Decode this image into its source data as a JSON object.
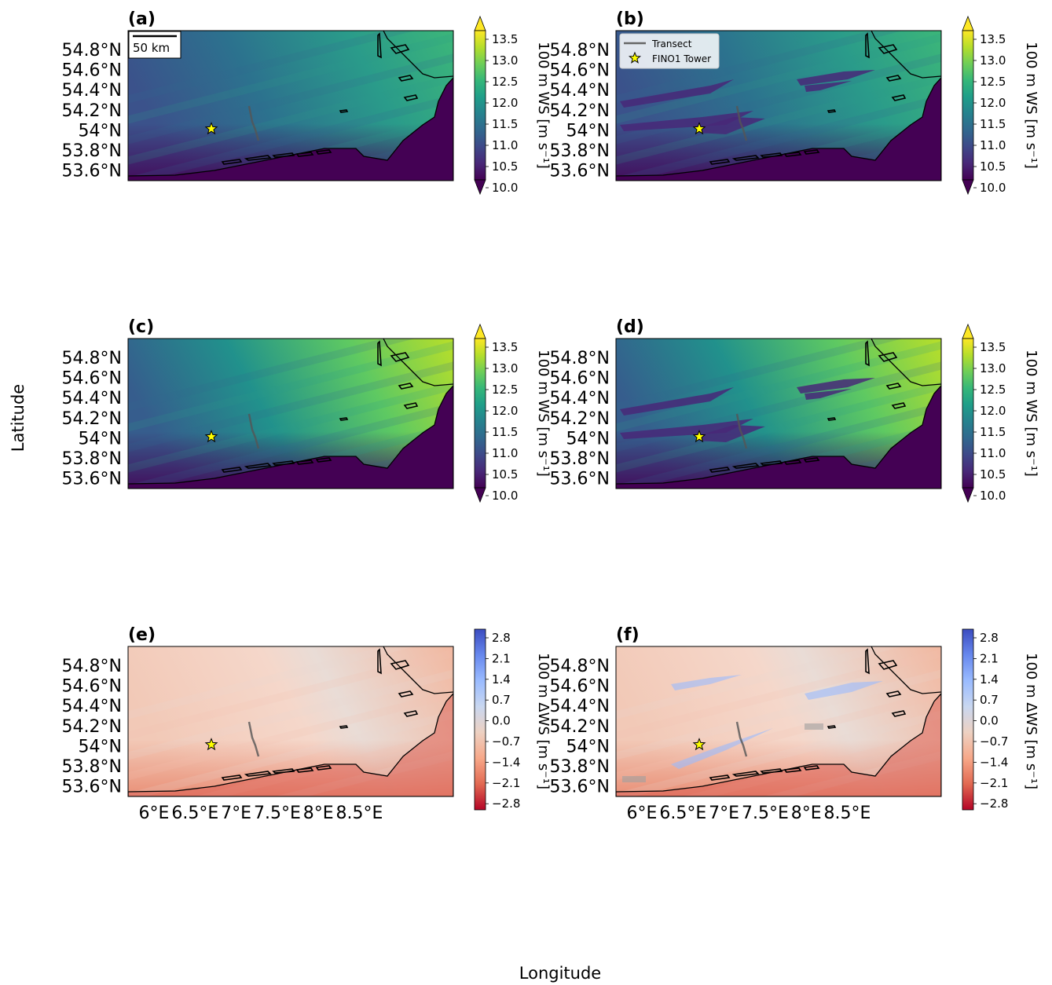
{
  "figure": {
    "xlabel": "Longitude",
    "ylabel": "Latitude"
  },
  "map_axes": {
    "lat_ticks": [
      "54.8°N",
      "54.6°N",
      "54.4°N",
      "54.2°N",
      "54°N",
      "53.8°N",
      "53.6°N"
    ],
    "lon_ticks": [
      "6°E",
      "6.5°E",
      "7°E",
      "7.5°E",
      "8°E",
      "8.5°E"
    ]
  },
  "colorbars": {
    "ws": {
      "label": "100 m WS [m s⁻¹]",
      "ticks": [
        "13.5",
        "13.0",
        "12.5",
        "12.0",
        "11.5",
        "11.0",
        "10.5",
        "10.0"
      ],
      "colors": [
        "#fde725",
        "#b5de2b",
        "#6ece58",
        "#35b779",
        "#1f9e89",
        "#26828e",
        "#31688e",
        "#3e4989",
        "#482878",
        "#440154"
      ]
    },
    "dws": {
      "label": "100 m ΔWS [m s⁻¹]",
      "ticks": [
        "2.8",
        "2.1",
        "1.4",
        "0.7",
        "0.0",
        "−0.7",
        "−1.4",
        "−2.1",
        "−2.8"
      ],
      "colors": [
        "#3b4cc0",
        "#6788ee",
        "#9abbff",
        "#c9d7f0",
        "#edd1c2",
        "#f7a889",
        "#e26952",
        "#b40426"
      ]
    }
  },
  "legend": {
    "transect": "Transect",
    "tower": "FINO1 Tower"
  },
  "scalebar": {
    "label": "50 km"
  },
  "panels": [
    {
      "id": "a",
      "label": "(a)",
      "field": "ws",
      "variant": "base",
      "show_scalebar": true,
      "show_legend": false,
      "show_lon": false
    },
    {
      "id": "b",
      "label": "(b)",
      "field": "ws",
      "variant": "wake",
      "show_scalebar": false,
      "show_legend": true,
      "show_lon": false
    },
    {
      "id": "c",
      "label": "(c)",
      "field": "ws",
      "variant": "bright",
      "show_scalebar": false,
      "show_legend": false,
      "show_lon": false
    },
    {
      "id": "d",
      "label": "(d)",
      "field": "ws",
      "variant": "brightwake",
      "show_scalebar": false,
      "show_legend": false,
      "show_lon": false
    },
    {
      "id": "e",
      "label": "(e)",
      "field": "dws",
      "variant": "diff",
      "show_scalebar": false,
      "show_legend": false,
      "show_lon": true
    },
    {
      "id": "f",
      "label": "(f)",
      "field": "dws",
      "variant": "diffwake",
      "show_scalebar": false,
      "show_legend": false,
      "show_lon": true
    }
  ]
}
